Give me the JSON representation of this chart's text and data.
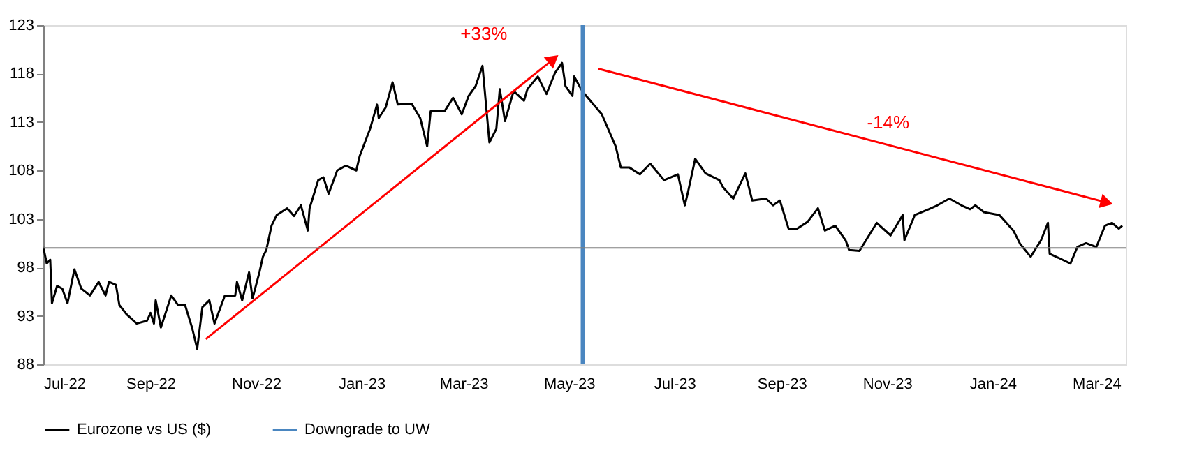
{
  "chart_data": {
    "type": "line",
    "xlim": [
      "2022-07-01",
      "2024-03-18"
    ],
    "xticks": [
      {
        "value": "2022-07-01",
        "label": "Jul-22"
      },
      {
        "value": "2022-09-01",
        "label": "Sep-22"
      },
      {
        "value": "2022-11-01",
        "label": "Nov-22"
      },
      {
        "value": "2023-01-01",
        "label": "Jan-23"
      },
      {
        "value": "2023-03-01",
        "label": "Mar-23"
      },
      {
        "value": "2023-05-01",
        "label": "May-23"
      },
      {
        "value": "2023-07-01",
        "label": "Jul-23"
      },
      {
        "value": "2023-09-01",
        "label": "Sep-23"
      },
      {
        "value": "2023-11-01",
        "label": "Nov-23"
      },
      {
        "value": "2024-01-01",
        "label": "Jan-24"
      },
      {
        "value": "2024-03-01",
        "label": "Mar-24"
      }
    ],
    "ylim": [
      88,
      123
    ],
    "yticks": [
      88,
      93,
      98,
      103,
      108,
      113,
      118,
      123
    ],
    "grid": false,
    "legend": "bottom",
    "series": [
      {
        "name": "Eurozone vs US ($)",
        "color": "#000000",
        "x": [
          "2022-07-01",
          "2022-07-03",
          "2022-07-05",
          "2022-07-06",
          "2022-07-09",
          "2022-07-12",
          "2022-07-15",
          "2022-07-19",
          "2022-07-23",
          "2022-07-28",
          "2022-08-02",
          "2022-08-06",
          "2022-08-08",
          "2022-08-12",
          "2022-08-14",
          "2022-08-18",
          "2022-08-24",
          "2022-08-30",
          "2022-09-01",
          "2022-09-03",
          "2022-09-04",
          "2022-09-07",
          "2022-09-13",
          "2022-09-17",
          "2022-09-21",
          "2022-09-25",
          "2022-09-28",
          "2022-10-01",
          "2022-10-05",
          "2022-10-08",
          "2022-10-14",
          "2022-10-20",
          "2022-10-21",
          "2022-10-24",
          "2022-10-28",
          "2022-10-30",
          "2022-11-03",
          "2022-11-05",
          "2022-11-07",
          "2022-11-10",
          "2022-11-13",
          "2022-11-19",
          "2022-11-23",
          "2022-11-27",
          "2022-12-01",
          "2022-12-02",
          "2022-12-07",
          "2022-12-10",
          "2022-12-13",
          "2022-12-18",
          "2022-12-23",
          "2022-12-29",
          "2022-12-31",
          "2023-01-06",
          "2023-01-10",
          "2023-01-11",
          "2023-01-15",
          "2023-01-19",
          "2023-01-22",
          "2023-01-30",
          "2023-02-04",
          "2023-02-08",
          "2023-02-10",
          "2023-02-18",
          "2023-02-23",
          "2023-02-28",
          "2023-03-04",
          "2023-03-08",
          "2023-03-12",
          "2023-03-16",
          "2023-03-20",
          "2023-03-22",
          "2023-03-25",
          "2023-03-30",
          "2023-04-05",
          "2023-04-07",
          "2023-04-13",
          "2023-04-18",
          "2023-04-23",
          "2023-04-27",
          "2023-04-29",
          "2023-05-03",
          "2023-05-04",
          "2023-05-08",
          "2023-05-10",
          "2023-05-20",
          "2023-05-28",
          "2023-05-31",
          "2023-06-05",
          "2023-06-11",
          "2023-06-17",
          "2023-06-25",
          "2023-07-03",
          "2023-07-07",
          "2023-07-09",
          "2023-07-13",
          "2023-07-19",
          "2023-07-27",
          "2023-07-29",
          "2023-08-04",
          "2023-08-11",
          "2023-08-15",
          "2023-08-23",
          "2023-08-27",
          "2023-08-31",
          "2023-09-05",
          "2023-09-10",
          "2023-09-16",
          "2023-09-22",
          "2023-09-26",
          "2023-10-02",
          "2023-10-08",
          "2023-10-10",
          "2023-10-16",
          "2023-10-26",
          "2023-11-03",
          "2023-11-10",
          "2023-11-11",
          "2023-11-17",
          "2023-11-25",
          "2023-11-30",
          "2023-12-07",
          "2023-12-14",
          "2023-12-19",
          "2023-12-22",
          "2023-12-27",
          "2024-01-05",
          "2024-01-13",
          "2024-01-17",
          "2024-01-23",
          "2024-01-29",
          "2024-02-02",
          "2024-02-03",
          "2024-02-08",
          "2024-02-15",
          "2024-02-19",
          "2024-02-24",
          "2024-03-01",
          "2024-03-06",
          "2024-03-10",
          "2024-03-14",
          "2024-03-16"
        ],
        "values": [
          100.1,
          98.4,
          98.8,
          94.3,
          96.1,
          95.8,
          94.3,
          97.8,
          95.8,
          95.1,
          96.5,
          95.1,
          96.5,
          96.2,
          94.1,
          93.2,
          92.2,
          92.5,
          93.3,
          92.2,
          94.6,
          91.8,
          95.1,
          94.1,
          94.1,
          91.8,
          89.6,
          93.9,
          94.6,
          92.2,
          95.1,
          95.1,
          96.5,
          94.6,
          97.5,
          94.8,
          97.5,
          99.1,
          99.8,
          102.3,
          103.4,
          104.1,
          103.3,
          104.4,
          101.8,
          104.1,
          107.0,
          107.3,
          105.6,
          108.0,
          108.5,
          108.0,
          109.5,
          112.3,
          114.8,
          113.4,
          114.5,
          117.1,
          114.8,
          114.9,
          113.4,
          110.5,
          114.1,
          114.1,
          115.5,
          113.8,
          115.7,
          116.7,
          118.8,
          110.9,
          112.3,
          116.4,
          113.1,
          116.2,
          115.2,
          116.4,
          117.7,
          115.9,
          118.1,
          119.1,
          116.7,
          115.7,
          117.7,
          116.4,
          115.9,
          113.8,
          110.5,
          108.3,
          108.3,
          107.6,
          108.7,
          107.0,
          107.6,
          104.4,
          105.9,
          109.2,
          107.7,
          107.0,
          106.3,
          105.1,
          107.7,
          104.9,
          105.1,
          104.4,
          104.9,
          102.0,
          102.0,
          102.7,
          104.1,
          101.8,
          102.3,
          100.8,
          99.8,
          99.7,
          102.6,
          101.3,
          103.4,
          100.8,
          103.4,
          104.0,
          104.4,
          105.1,
          104.4,
          104.0,
          104.4,
          103.7,
          103.4,
          101.8,
          100.4,
          99.1,
          100.8,
          102.6,
          99.4,
          99.0,
          98.4,
          100.1,
          100.5,
          100.1,
          102.3,
          102.6,
          102.0,
          102.3
        ]
      },
      {
        "type": "line",
        "color": "#ff0000",
        "x": [
          "2022-10-03",
          "2023-04-22"
        ],
        "values": [
          90.6,
          119.5
        ]
      },
      {
        "type": "line",
        "color": "#ff0000",
        "x": [
          "2023-05-18",
          "2024-03-07"
        ],
        "values": [
          118.5,
          104.7
        ]
      }
    ],
    "ref_lines": [
      {
        "axis": "x",
        "value": "2023-05-09",
        "label": "Downgrade to UW",
        "color": "#4a86c0"
      },
      {
        "axis": "y",
        "value": 100,
        "color": "#808080"
      }
    ],
    "annotations": [
      "+33%",
      "-14%"
    ]
  }
}
